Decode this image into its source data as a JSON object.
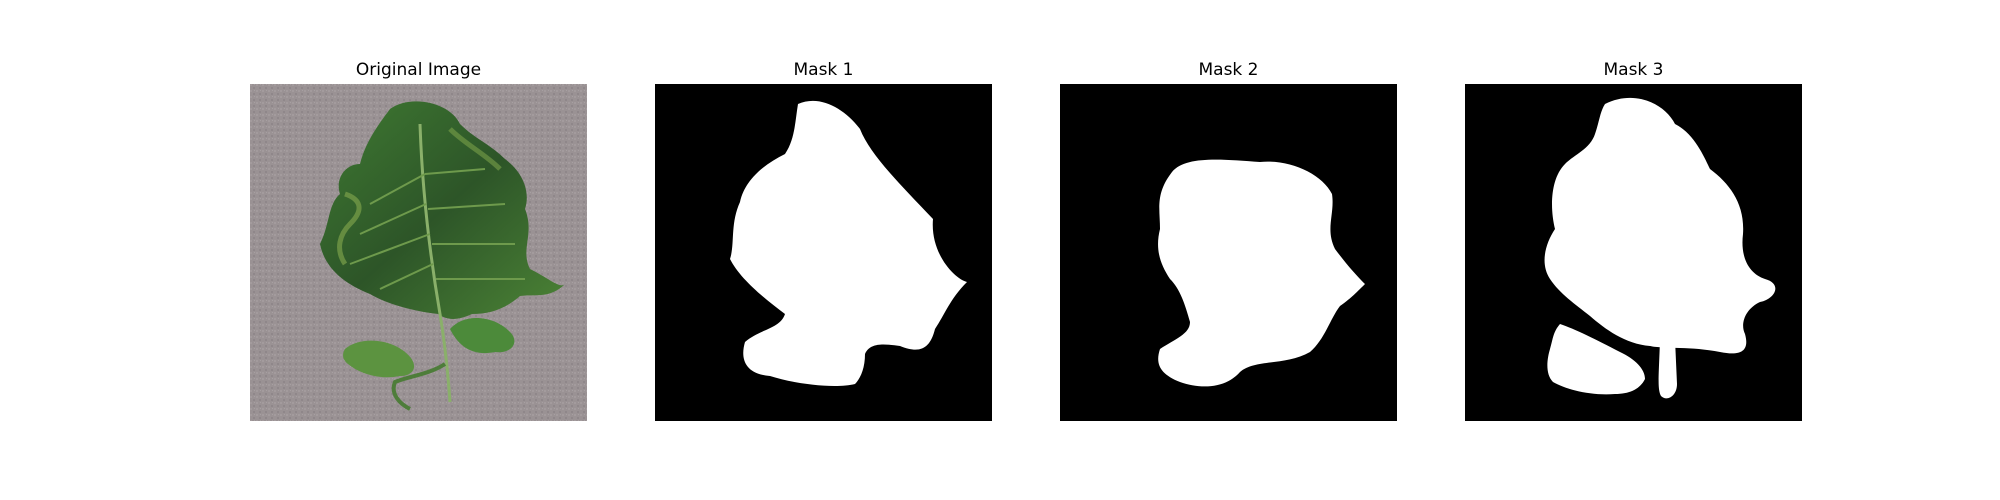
{
  "figure": {
    "background": "#ffffff",
    "panels": [
      {
        "title": "Original Image",
        "kind": "photo"
      },
      {
        "title": "Mask 1",
        "kind": "mask"
      },
      {
        "title": "Mask 2",
        "kind": "mask"
      },
      {
        "title": "Mask 3",
        "kind": "mask"
      }
    ],
    "colors": {
      "mask_background": "#000000",
      "mask_foreground": "#ffffff",
      "photo_background": "#9a9294",
      "leaf_dark": "#2d5528",
      "leaf_mid": "#3f7a32",
      "leaf_light": "#6f9a3c"
    }
  }
}
